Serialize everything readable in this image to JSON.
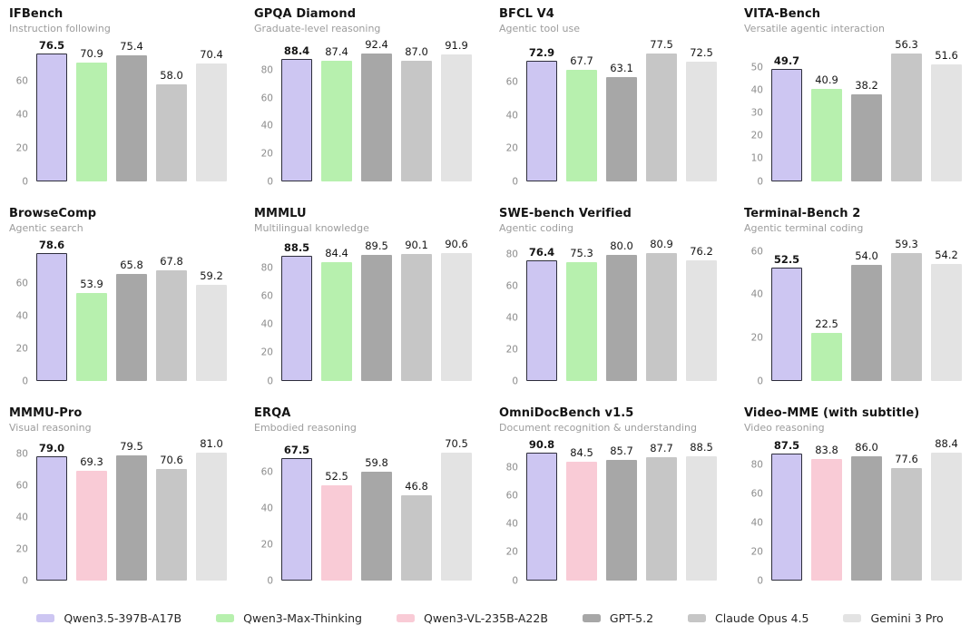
{
  "models": [
    {
      "name": "Qwen3.5-397B-A17B",
      "color": "#cdc6f2",
      "border_color": "#2e2e3c",
      "highlighted": true
    },
    {
      "name": "Qwen3-Max-Thinking",
      "color": "#b7f0ae"
    },
    {
      "name": "Qwen3-VL-235B-A22B",
      "color": "#f9cbd6"
    },
    {
      "name": "GPT-5.2",
      "color": "#a7a7a7"
    },
    {
      "name": "Claude Opus 4.5",
      "color": "#c6c6c6"
    },
    {
      "name": "Gemini 3 Pro",
      "color": "#e3e3e3"
    }
  ],
  "chart_data": [
    {
      "type": "bar",
      "title": "IFBench",
      "subtitle": "Instruction following",
      "series": [
        "Qwen3.5-397B-A17B",
        "Qwen3-Max-Thinking",
        "GPT-5.2",
        "Claude Opus 4.5",
        "Gemini 3 Pro"
      ],
      "values": [
        76.5,
        70.9,
        75.4,
        58.0,
        70.4
      ],
      "labels": [
        "76.5",
        "70.9",
        "75.4",
        "58.0",
        "70.4"
      ],
      "yticks": [
        0,
        20,
        40,
        60
      ],
      "ylim": [
        0,
        80.3
      ],
      "grid": false
    },
    {
      "type": "bar",
      "title": "GPQA Diamond",
      "subtitle": "Graduate-level reasoning",
      "series": [
        "Qwen3.5-397B-A17B",
        "Qwen3-Max-Thinking",
        "GPT-5.2",
        "Claude Opus 4.5",
        "Gemini 3 Pro"
      ],
      "values": [
        88.4,
        87.4,
        92.4,
        87.0,
        91.9
      ],
      "labels": [
        "88.4",
        "87.4",
        "92.4",
        "87.0",
        "91.9"
      ],
      "yticks": [
        0,
        20,
        40,
        60,
        80
      ],
      "ylim": [
        0,
        97.0
      ],
      "grid": false
    },
    {
      "type": "bar",
      "title": "BFCL V4",
      "subtitle": "Agentic tool use",
      "series": [
        "Qwen3.5-397B-A17B",
        "Qwen3-Max-Thinking",
        "GPT-5.2",
        "Claude Opus 4.5",
        "Gemini 3 Pro"
      ],
      "values": [
        72.9,
        67.7,
        63.1,
        77.5,
        72.5
      ],
      "labels": [
        "72.9",
        "67.7",
        "63.1",
        "77.5",
        "72.5"
      ],
      "yticks": [
        0,
        20,
        40,
        60
      ],
      "ylim": [
        0,
        81.4
      ],
      "grid": false
    },
    {
      "type": "bar",
      "title": "VITA-Bench",
      "subtitle": "Versatile agentic interaction",
      "series": [
        "Qwen3.5-397B-A17B",
        "Qwen3-Max-Thinking",
        "GPT-5.2",
        "Claude Opus 4.5",
        "Gemini 3 Pro"
      ],
      "values": [
        49.7,
        40.9,
        38.2,
        56.3,
        51.6
      ],
      "labels": [
        "49.7",
        "40.9",
        "38.2",
        "56.3",
        "51.6"
      ],
      "yticks": [
        0,
        10,
        20,
        30,
        40,
        50
      ],
      "ylim": [
        0,
        59.1
      ],
      "grid": false
    },
    {
      "type": "bar",
      "title": "BrowseComp",
      "subtitle": "Agentic search",
      "series": [
        "Qwen3.5-397B-A17B",
        "Qwen3-Max-Thinking",
        "GPT-5.2",
        "Claude Opus 4.5",
        "Gemini 3 Pro"
      ],
      "values": [
        78.6,
        53.9,
        65.8,
        67.8,
        59.2
      ],
      "labels": [
        "78.6",
        "53.9",
        "65.8",
        "67.8",
        "59.2"
      ],
      "yticks": [
        0,
        20,
        40,
        60
      ],
      "ylim": [
        0,
        82.5
      ],
      "grid": false
    },
    {
      "type": "bar",
      "title": "MMMLU",
      "subtitle": "Multilingual knowledge",
      "series": [
        "Qwen3.5-397B-A17B",
        "Qwen3-Max-Thinking",
        "GPT-5.2",
        "Claude Opus 4.5",
        "Gemini 3 Pro"
      ],
      "values": [
        88.5,
        84.4,
        89.5,
        90.1,
        90.6
      ],
      "labels": [
        "88.5",
        "84.4",
        "89.5",
        "90.1",
        "90.6"
      ],
      "yticks": [
        0,
        20,
        40,
        60,
        80
      ],
      "ylim": [
        0,
        95.1
      ],
      "grid": false
    },
    {
      "type": "bar",
      "title": "SWE-bench Verified",
      "subtitle": "Agentic coding",
      "series": [
        "Qwen3.5-397B-A17B",
        "Qwen3-Max-Thinking",
        "GPT-5.2",
        "Claude Opus 4.5",
        "Gemini 3 Pro"
      ],
      "values": [
        76.4,
        75.3,
        80.0,
        80.9,
        76.2
      ],
      "labels": [
        "76.4",
        "75.3",
        "80.0",
        "80.9",
        "76.2"
      ],
      "yticks": [
        0,
        20,
        40,
        60,
        80
      ],
      "ylim": [
        0,
        84.9
      ],
      "grid": false
    },
    {
      "type": "bar",
      "title": "Terminal-Bench 2",
      "subtitle": "Agentic terminal coding",
      "series": [
        "Qwen3.5-397B-A17B",
        "Qwen3-Max-Thinking",
        "GPT-5.2",
        "Claude Opus 4.5",
        "Gemini 3 Pro"
      ],
      "values": [
        52.5,
        22.5,
        54.0,
        59.3,
        54.2
      ],
      "labels": [
        "52.5",
        "22.5",
        "54.0",
        "59.3",
        "54.2"
      ],
      "yticks": [
        0,
        20,
        40,
        60
      ],
      "ylim": [
        0,
        62.3
      ],
      "grid": false
    },
    {
      "type": "bar",
      "title": "MMMU-Pro",
      "subtitle": "Visual reasoning",
      "series": [
        "Qwen3.5-397B-A17B",
        "Qwen3-VL-235B-A22B",
        "GPT-5.2",
        "Claude Opus 4.5",
        "Gemini 3 Pro"
      ],
      "values": [
        79.0,
        69.3,
        79.5,
        70.6,
        81.0
      ],
      "labels": [
        "79.0",
        "69.3",
        "79.5",
        "70.6",
        "81.0"
      ],
      "yticks": [
        0,
        20,
        40,
        60,
        80
      ],
      "ylim": [
        0,
        85.1
      ],
      "grid": false
    },
    {
      "type": "bar",
      "title": "ERQA",
      "subtitle": "Embodied reasoning",
      "series": [
        "Qwen3.5-397B-A17B",
        "Qwen3-VL-235B-A22B",
        "GPT-5.2",
        "Claude Opus 4.5",
        "Gemini 3 Pro"
      ],
      "values": [
        67.5,
        52.5,
        59.8,
        46.8,
        70.5
      ],
      "labels": [
        "67.5",
        "52.5",
        "59.8",
        "46.8",
        "70.5"
      ],
      "yticks": [
        0,
        20,
        40,
        60
      ],
      "ylim": [
        0,
        74.0
      ],
      "grid": false
    },
    {
      "type": "bar",
      "title": "OmniDocBench v1.5",
      "subtitle": "Document recognition & understanding",
      "series": [
        "Qwen3.5-397B-A17B",
        "Qwen3-VL-235B-A22B",
        "GPT-5.2",
        "Claude Opus 4.5",
        "Gemini 3 Pro"
      ],
      "values": [
        90.8,
        84.5,
        85.7,
        87.7,
        88.5
      ],
      "labels": [
        "90.8",
        "84.5",
        "85.7",
        "87.7",
        "88.5"
      ],
      "yticks": [
        0,
        20,
        40,
        60,
        80
      ],
      "ylim": [
        0,
        95.3
      ],
      "grid": false
    },
    {
      "type": "bar",
      "title": "Video-MME (with subtitle)",
      "subtitle": "Video reasoning",
      "series": [
        "Qwen3.5-397B-A17B",
        "Qwen3-VL-235B-A22B",
        "GPT-5.2",
        "Claude Opus 4.5",
        "Gemini 3 Pro"
      ],
      "values": [
        87.5,
        83.8,
        86.0,
        77.6,
        88.4
      ],
      "labels": [
        "87.5",
        "83.8",
        "86.0",
        "77.6",
        "88.4"
      ],
      "yticks": [
        0,
        20,
        40,
        60,
        80
      ],
      "ylim": [
        0,
        92.8
      ],
      "grid": false
    }
  ],
  "legend": {
    "position": "bottom-center",
    "entries": [
      "Qwen3.5-397B-A17B",
      "Qwen3-Max-Thinking",
      "Qwen3-VL-235B-A22B",
      "GPT-5.2",
      "Claude Opus 4.5",
      "Gemini 3 Pro"
    ]
  }
}
